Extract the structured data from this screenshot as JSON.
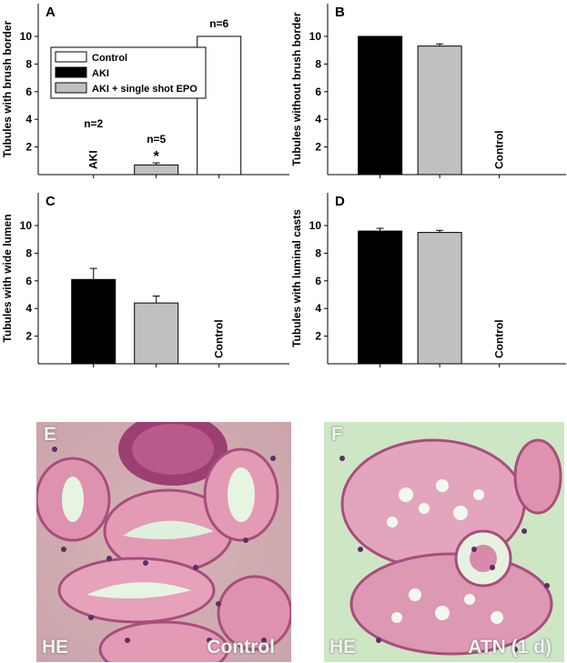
{
  "chart_data": [
    {
      "panel": "A",
      "type": "bar",
      "ylabel": "Tubules with brush border",
      "ylim": [
        0,
        10
      ],
      "yticks": [
        2,
        4,
        6,
        8,
        10
      ],
      "series": [
        {
          "name": "AKI",
          "value": 0,
          "error": 0,
          "n_label": "n=2",
          "inside_label": "AKI"
        },
        {
          "name": "AKI + single shot EPO",
          "value": 0.7,
          "error": 0.15,
          "n_label": "n=5",
          "sig": "*"
        },
        {
          "name": "Control",
          "value": 10,
          "error": 0,
          "n_label": "n=6"
        }
      ],
      "legend": {
        "position": "top-left",
        "entries": [
          "Control",
          "AKI",
          "AKI + single shot EPO"
        ]
      }
    },
    {
      "panel": "B",
      "type": "bar",
      "ylabel": "Tubules without brush border",
      "ylim": [
        0,
        10
      ],
      "yticks": [
        2,
        4,
        6,
        8,
        10
      ],
      "series": [
        {
          "name": "AKI",
          "value": 10,
          "error": 0
        },
        {
          "name": "AKI + single shot EPO",
          "value": 9.3,
          "error": 0.15
        },
        {
          "name": "Control",
          "value": 0,
          "error": 0,
          "inside_label": "Control"
        }
      ]
    },
    {
      "panel": "C",
      "type": "bar",
      "ylabel": "Tubules with wide lumen",
      "ylim": [
        0,
        10
      ],
      "yticks": [
        2,
        4,
        6,
        8,
        10
      ],
      "series": [
        {
          "name": "AKI",
          "value": 6.1,
          "error": 0.8
        },
        {
          "name": "AKI + single shot EPO",
          "value": 4.4,
          "error": 0.5
        },
        {
          "name": "Control",
          "value": 0,
          "error": 0,
          "inside_label": "Control"
        }
      ]
    },
    {
      "panel": "D",
      "type": "bar",
      "ylabel": "Tubules with luminal casts",
      "ylim": [
        0,
        10
      ],
      "yticks": [
        2,
        4,
        6,
        8,
        10
      ],
      "series": [
        {
          "name": "AKI",
          "value": 9.6,
          "error": 0.2
        },
        {
          "name": "AKI + single shot EPO",
          "value": 9.5,
          "error": 0.15
        },
        {
          "name": "Control",
          "value": 0,
          "error": 0,
          "inside_label": "Control"
        }
      ]
    }
  ],
  "colors": {
    "AKI": "#000000",
    "AKI + single shot EPO": "#c0c0c0",
    "Control": "#ffffff"
  },
  "micrographs": [
    {
      "panel": "E",
      "stain": "HE",
      "caption": "Control"
    },
    {
      "panel": "F",
      "stain": "HE",
      "caption": "ATN (1 d)"
    }
  ]
}
